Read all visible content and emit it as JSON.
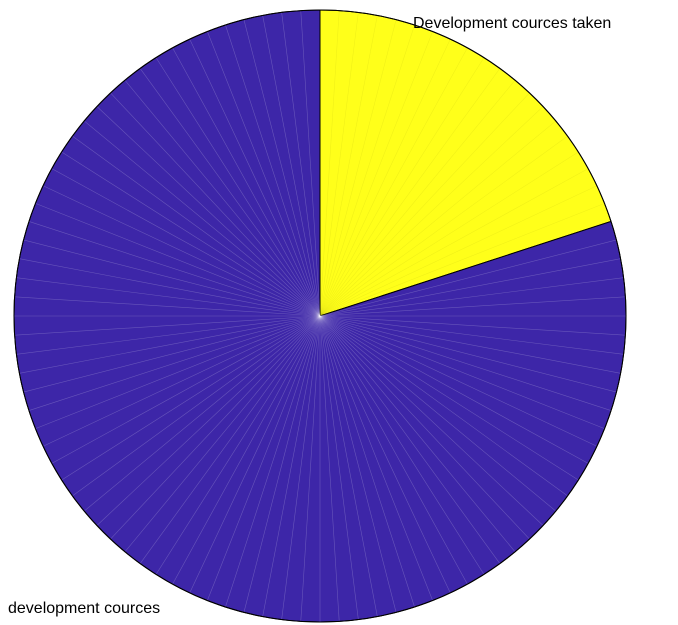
{
  "chart_data": {
    "type": "pie",
    "categories": [
      "Development cources taken",
      "development cources"
    ],
    "values": [
      20,
      80
    ],
    "colors": [
      "#ffff1a",
      "#3d26a8"
    ],
    "grid": false,
    "legend": "none",
    "start_angle_deg": 0,
    "direction": "clockwise"
  }
}
